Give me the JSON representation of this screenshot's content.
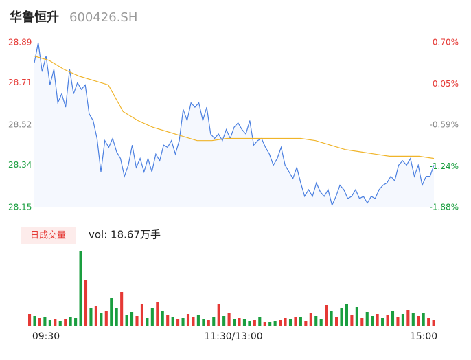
{
  "header": {
    "name": "华鲁恒升",
    "code": "600426.SH"
  },
  "chart_data": [
    {
      "type": "line",
      "ylim": [
        28.15,
        28.89
      ],
      "yticks": [
        28.89,
        28.71,
        28.52,
        28.34,
        28.15
      ],
      "y2lim": [
        -1.88,
        0.7
      ],
      "y2ticks": [
        {
          "value": 0.7,
          "label": "0.70%"
        },
        {
          "value": 0.05,
          "label": "0.05%"
        },
        {
          "value": -0.59,
          "label": "-0.59%"
        },
        {
          "value": -1.24,
          "label": "-1.24%"
        },
        {
          "value": -1.88,
          "label": "-1.88%"
        }
      ],
      "up_color": "#e53935",
      "down_color": "#1a9e3f",
      "flat_color": "#888888",
      "series": [
        {
          "color": "#4a7fe0",
          "values": [
            28.8,
            28.89,
            28.76,
            28.83,
            28.7,
            28.77,
            28.62,
            28.66,
            28.6,
            28.77,
            28.66,
            28.71,
            28.68,
            28.7,
            28.57,
            28.54,
            28.46,
            28.31,
            28.45,
            28.42,
            28.46,
            28.4,
            28.37,
            28.29,
            28.34,
            28.43,
            28.33,
            28.37,
            28.31,
            28.37,
            28.31,
            28.39,
            28.36,
            28.43,
            28.42,
            28.45,
            28.39,
            28.45,
            28.59,
            28.54,
            28.62,
            28.6,
            28.62,
            28.54,
            28.6,
            28.48,
            28.46,
            28.48,
            28.45,
            28.5,
            28.46,
            28.51,
            28.53,
            28.5,
            28.48,
            28.54,
            28.43,
            28.45,
            28.46,
            28.42,
            28.39,
            28.34,
            28.37,
            28.42,
            28.34,
            28.31,
            28.28,
            28.33,
            28.26,
            28.2,
            28.23,
            28.2,
            28.26,
            28.22,
            28.2,
            28.23,
            28.16,
            28.2,
            28.25,
            28.23,
            28.19,
            28.2,
            28.23,
            28.19,
            28.2,
            28.17,
            28.2,
            28.19,
            28.23,
            28.25,
            28.26,
            28.29,
            28.27,
            28.34,
            28.36,
            28.34,
            28.37,
            28.29,
            28.34,
            28.25,
            28.29,
            28.29,
            28.34
          ]
        },
        {
          "color": "#f0b429",
          "values": [
            28.83,
            28.81,
            28.77,
            28.74,
            28.72,
            28.7,
            28.58,
            28.54,
            28.51,
            28.49,
            28.47,
            28.45,
            28.45,
            28.46,
            28.46,
            28.46,
            28.46,
            28.46,
            28.46,
            28.45,
            28.43,
            28.41,
            28.4,
            28.39,
            28.38,
            28.38,
            28.38,
            28.37
          ]
        }
      ]
    },
    {
      "type": "volume",
      "label": "日成交量",
      "summary": "vol: 18.67万手",
      "xticks": [
        "09:30",
        "11:30/13:00",
        "15:00"
      ],
      "values": [
        1800,
        1500,
        1200,
        1400,
        900,
        1100,
        800,
        1000,
        1300,
        1200,
        11000,
        6800,
        2600,
        3000,
        1900,
        2300,
        4100,
        2700,
        5000,
        1700,
        2100,
        1500,
        3300,
        1200,
        2700,
        3600,
        2200,
        1600,
        1400,
        1000,
        1200,
        1800,
        1300,
        1600,
        1100,
        900,
        1300,
        3200,
        1500,
        2000,
        1100,
        1200,
        1000,
        800,
        900,
        1300,
        700,
        600,
        800,
        900,
        1200,
        1000,
        1300,
        1400,
        800,
        1900,
        1500,
        1100,
        3100,
        2200,
        1400,
        2600,
        3300,
        1700,
        2800,
        1200,
        2100,
        1500,
        1800,
        1200,
        1600,
        2300,
        1400,
        1800,
        2400,
        2000,
        1500,
        1900,
        1200,
        900
      ],
      "bar_colors": [
        "#e53935",
        "#1a9e3f",
        "#e53935",
        "#1a9e3f",
        "#1a9e3f",
        "#e53935",
        "#1a9e3f",
        "#e53935",
        "#1a9e3f",
        "#1a9e3f",
        "#1a9e3f",
        "#e53935",
        "#1a9e3f",
        "#e53935",
        "#1a9e3f",
        "#e53935",
        "#1a9e3f",
        "#1a9e3f",
        "#e53935",
        "#1a9e3f",
        "#1a9e3f",
        "#e53935",
        "#e53935",
        "#1a9e3f",
        "#1a9e3f",
        "#e53935",
        "#1a9e3f",
        "#e53935",
        "#1a9e3f",
        "#e53935",
        "#1a9e3f",
        "#e53935",
        "#e53935",
        "#1a9e3f",
        "#1a9e3f",
        "#e53935",
        "#1a9e3f",
        "#e53935",
        "#1a9e3f",
        "#e53935",
        "#1a9e3f",
        "#e53935",
        "#1a9e3f",
        "#1a9e3f",
        "#e53935",
        "#1a9e3f",
        "#e53935",
        "#1a9e3f",
        "#1a9e3f",
        "#e53935",
        "#e53935",
        "#1a9e3f",
        "#e53935",
        "#1a9e3f",
        "#e53935",
        "#e53935",
        "#1a9e3f",
        "#1a9e3f",
        "#e53935",
        "#1a9e3f",
        "#e53935",
        "#1a9e3f",
        "#1a9e3f",
        "#e53935",
        "#1a9e3f",
        "#e53935",
        "#1a9e3f",
        "#1a9e3f",
        "#e53935",
        "#1a9e3f",
        "#e53935",
        "#1a9e3f",
        "#e53935",
        "#1a9e3f",
        "#e53935",
        "#1a9e3f",
        "#e53935",
        "#1a9e3f",
        "#e53935",
        "#e53935"
      ]
    }
  ]
}
